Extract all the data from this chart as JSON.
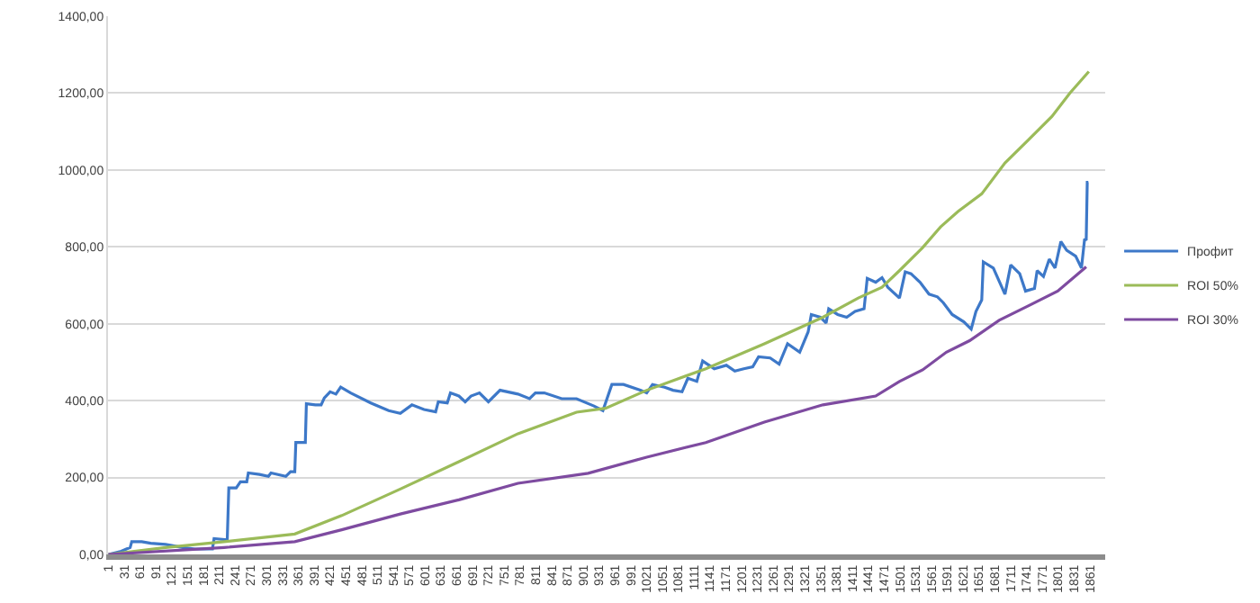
{
  "chart_data": {
    "type": "line",
    "xlim": [
      0,
      1890
    ],
    "xticks": [
      1,
      31,
      61,
      91,
      121,
      151,
      181,
      211,
      241,
      271,
      301,
      331,
      361,
      391,
      421,
      451,
      481,
      511,
      541,
      571,
      601,
      631,
      661,
      691,
      721,
      751,
      781,
      811,
      841,
      871,
      901,
      931,
      961,
      991,
      1021,
      1051,
      1081,
      1111,
      1141,
      1171,
      1201,
      1231,
      1261,
      1291,
      1321,
      1351,
      1381,
      1411,
      1441,
      1471,
      1501,
      1531,
      1561,
      1591,
      1621,
      1651,
      1681,
      1711,
      1741,
      1771,
      1801,
      1831,
      1861
    ],
    "ylim": [
      0,
      1400
    ],
    "yticks": [
      {
        "value": 0,
        "label": "0,00"
      },
      {
        "value": 200,
        "label": "200,00"
      },
      {
        "value": 400,
        "label": "400,00"
      },
      {
        "value": 600,
        "label": "600,00"
      },
      {
        "value": 800,
        "label": "800,00"
      },
      {
        "value": 1000,
        "label": "1000,00"
      },
      {
        "value": 1200,
        "label": "1200,00"
      },
      {
        "value": 1400,
        "label": "1400,00"
      }
    ],
    "grid": "y",
    "legend": "right",
    "marker": "none",
    "line_style": "solid",
    "series": [
      {
        "name": "Профит",
        "color": "#3d78c8",
        "x": [
          1,
          25,
          42,
          45,
          64,
          81,
          109,
          142,
          165,
          198,
          201,
          226,
          229,
          243,
          251,
          263,
          266,
          287,
          304,
          309,
          337,
          346,
          354,
          356,
          365,
          374,
          376,
          393,
          404,
          410,
          421,
          432,
          441,
          460,
          498,
          532,
          554,
          576,
          599,
          621,
          626,
          643,
          649,
          665,
          677,
          688,
          704,
          721,
          743,
          777,
          799,
          810,
          827,
          860,
          888,
          921,
          938,
          955,
          977,
          1010,
          1021,
          1032,
          1055,
          1071,
          1088,
          1099,
          1116,
          1127,
          1149,
          1172,
          1188,
          1205,
          1222,
          1233,
          1255,
          1272,
          1288,
          1311,
          1327,
          1333,
          1350,
          1361,
          1366,
          1383,
          1400,
          1416,
          1433,
          1439,
          1455,
          1467,
          1478,
          1500,
          1511,
          1522,
          1539,
          1556,
          1572,
          1583,
          1600,
          1622,
          1636,
          1645,
          1656,
          1659,
          1678,
          1700,
          1711,
          1728,
          1739,
          1756,
          1761,
          1773,
          1784,
          1795,
          1806,
          1817,
          1834,
          1845,
          1851,
          1854,
          1856,
          1858
        ],
        "values": [
          0,
          8,
          18,
          33,
          33,
          29,
          26,
          18,
          14,
          14,
          41,
          38,
          173,
          173,
          189,
          189,
          212,
          208,
          203,
          212,
          203,
          215,
          215,
          291,
          291,
          291,
          392,
          389,
          389,
          407,
          423,
          417,
          435,
          420,
          394,
          374,
          367,
          389,
          377,
          371,
          397,
          394,
          420,
          412,
          397,
          412,
          420,
          397,
          427,
          417,
          405,
          420,
          420,
          405,
          405,
          386,
          374,
          442,
          442,
          427,
          420,
          442,
          435,
          427,
          423,
          458,
          450,
          503,
          483,
          492,
          477,
          483,
          488,
          514,
          511,
          495,
          548,
          526,
          579,
          624,
          617,
          602,
          639,
          624,
          617,
          632,
          639,
          718,
          708,
          720,
          695,
          667,
          735,
          730,
          708,
          677,
          670,
          655,
          624,
          605,
          586,
          632,
          662,
          761,
          745,
          677,
          753,
          730,
          685,
          692,
          738,
          723,
          768,
          745,
          814,
          791,
          776,
          745,
          821,
          817,
          968,
          968
        ]
      },
      {
        "name": "ROI 50%",
        "color": "#9bbb59",
        "x": [
          1,
          109,
          220,
          354,
          443,
          554,
          665,
          777,
          888,
          943,
          1021,
          1133,
          1244,
          1355,
          1422,
          1467,
          1500,
          1544,
          1578,
          1611,
          1656,
          1700,
          1745,
          1789,
          1823,
          1859
        ],
        "values": [
          0,
          18,
          33,
          53,
          101,
          170,
          241,
          314,
          370,
          380,
          427,
          483,
          548,
          617,
          667,
          695,
          738,
          798,
          852,
          892,
          938,
          1018,
          1079,
          1139,
          1200,
          1256
        ]
      },
      {
        "name": "ROI 30%",
        "color": "#7e4ba0",
        "x": [
          1,
          220,
          354,
          443,
          554,
          665,
          777,
          910,
          1021,
          1133,
          1244,
          1355,
          1455,
          1500,
          1544,
          1589,
          1633,
          1689,
          1745,
          1800,
          1854
        ],
        "values": [
          0,
          18,
          33,
          64,
          105,
          142,
          185,
          211,
          253,
          291,
          344,
          389,
          412,
          450,
          480,
          526,
          556,
          609,
          647,
          685,
          748
        ]
      }
    ]
  }
}
